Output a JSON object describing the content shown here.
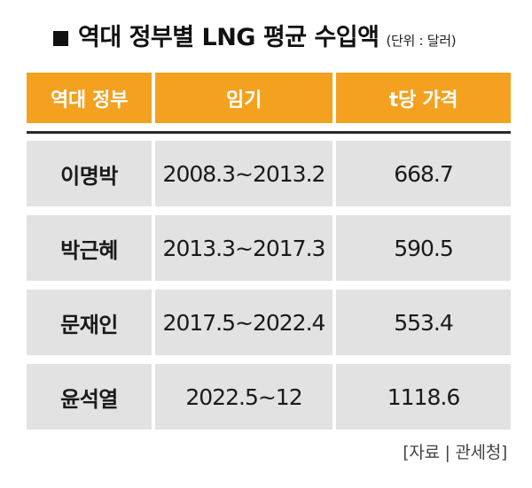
{
  "title": {
    "text": "역대 정부별 LNG 평균 수입액",
    "unit": "(단위 : 달러)"
  },
  "table": {
    "headers": [
      "역대 정부",
      "임기",
      "t당 가격"
    ],
    "rows": [
      {
        "government": "이명박",
        "term": "2008.3~2013.2",
        "price": "668.7"
      },
      {
        "government": "박근혜",
        "term": "2013.3~2017.3",
        "price": "590.5"
      },
      {
        "government": "문재인",
        "term": "2017.5~2022.4",
        "price": "553.4"
      },
      {
        "government": "윤석열",
        "term": "2022.5~12",
        "price": "1118.6"
      }
    ]
  },
  "source": "[자료 | 관세청]",
  "colors": {
    "header_bg": "#f4a11f",
    "header_text": "#ffffff",
    "cell_bg": "#e2e2e2",
    "divider": "#2a2a2a"
  }
}
